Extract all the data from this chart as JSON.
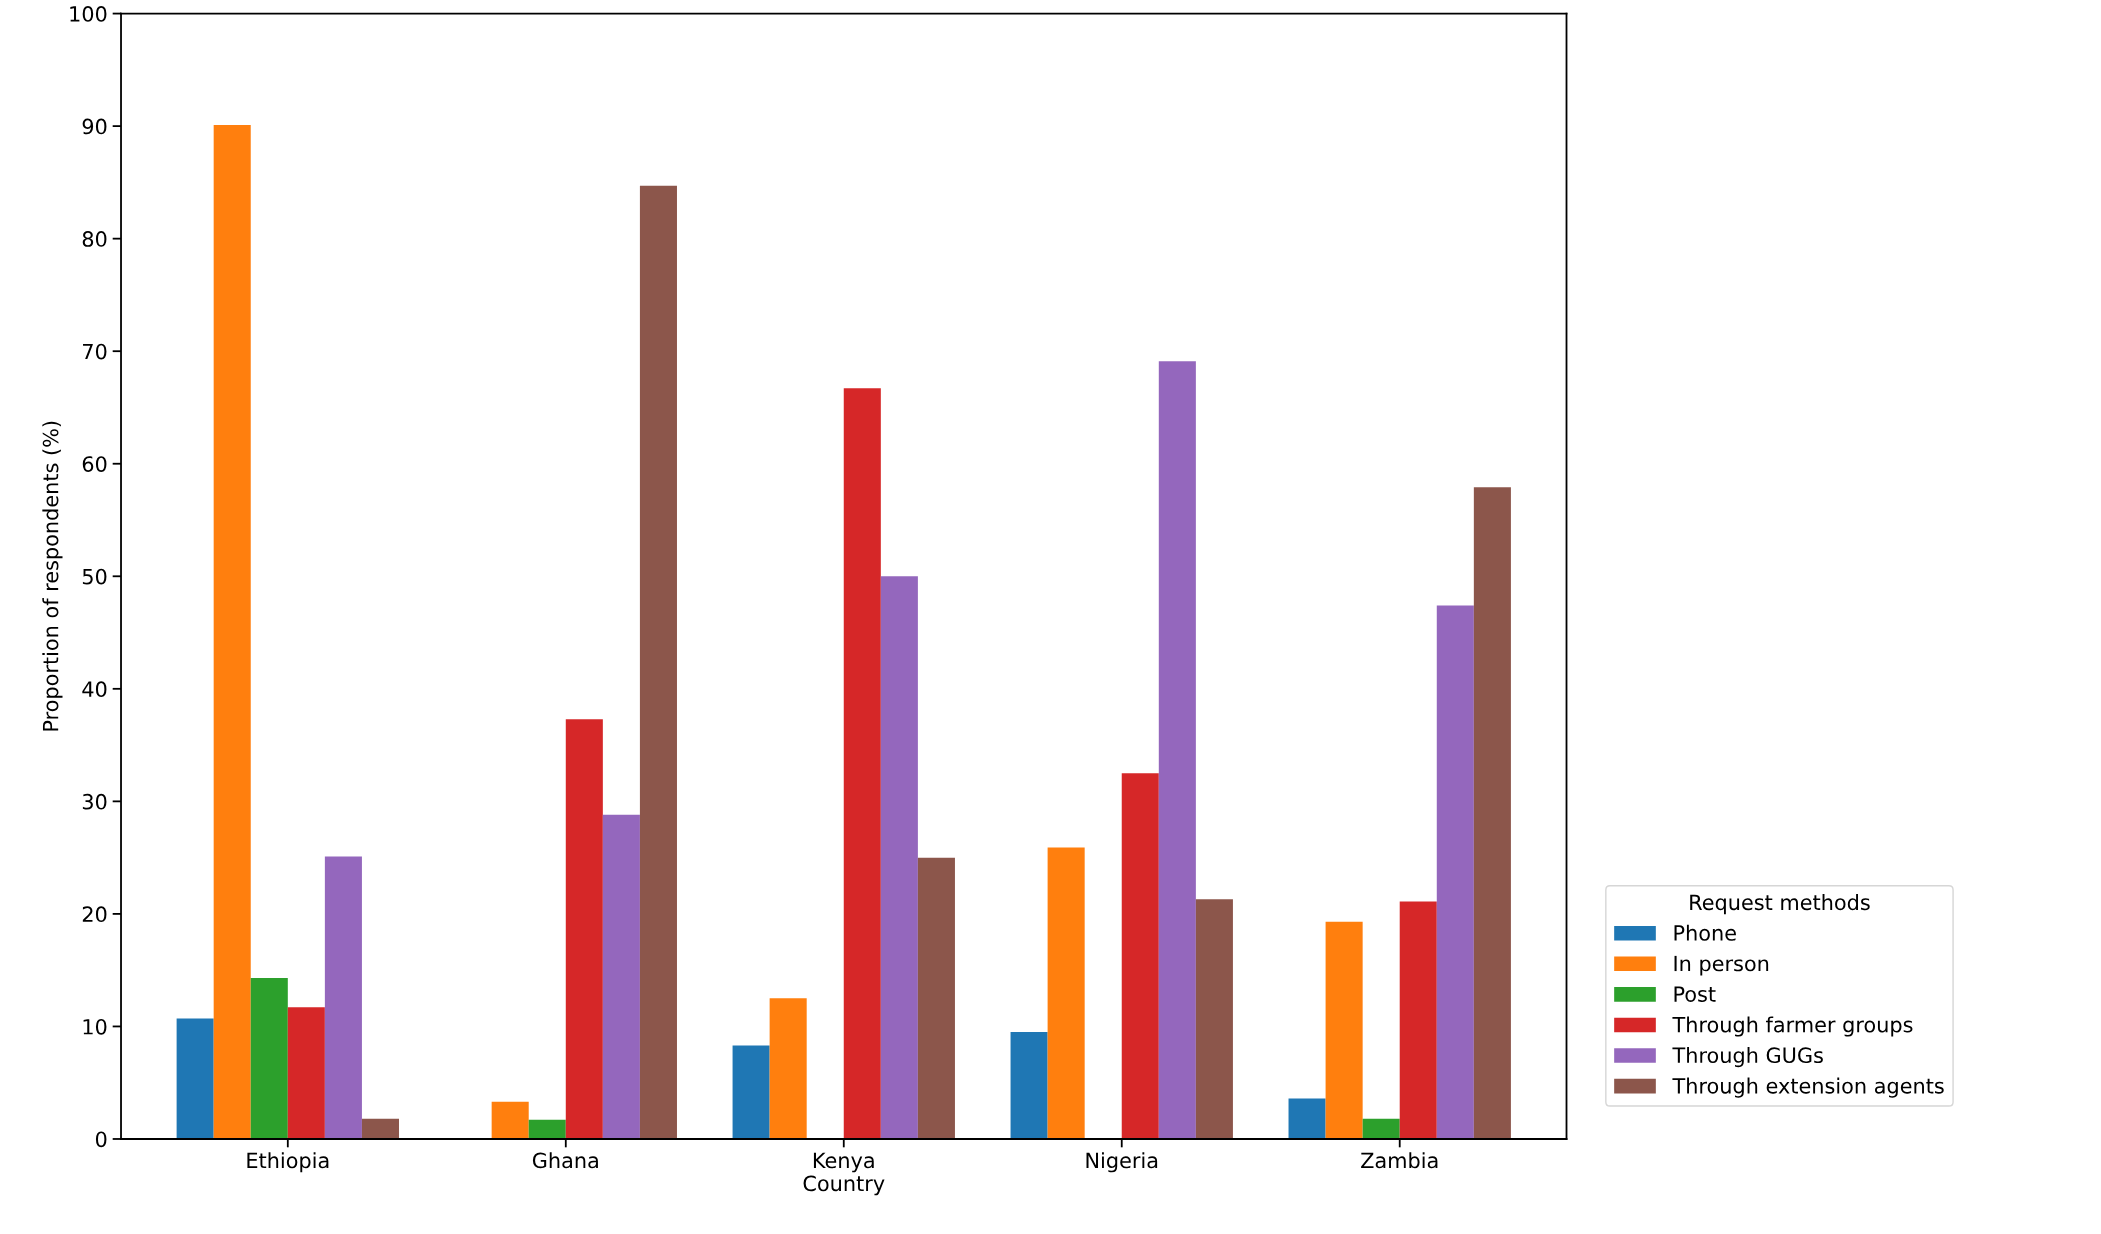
{
  "chart_data": {
    "type": "bar",
    "xlabel": "Country",
    "ylabel": "Proportion of respondents (%)",
    "legend_title": "Request methods",
    "legend": "right",
    "categories": [
      "Ethiopia",
      "Ghana",
      "Kenya",
      "Nigeria",
      "Zambia"
    ],
    "ylim": [
      0,
      100
    ],
    "yticks": [
      0,
      10,
      20,
      30,
      40,
      50,
      60,
      70,
      80,
      90,
      100
    ],
    "grid": false,
    "series": [
      {
        "name": "Phone",
        "color": "#1f77b4",
        "values": [
          10.7,
          0,
          8.3,
          9.5,
          3.6
        ]
      },
      {
        "name": "In person",
        "color": "#ff7f0e",
        "values": [
          90.1,
          3.3,
          12.5,
          25.9,
          19.3
        ]
      },
      {
        "name": "Post",
        "color": "#2ca02c",
        "values": [
          14.3,
          1.7,
          0,
          0,
          1.8
        ]
      },
      {
        "name": "Through farmer groups",
        "color": "#d62728",
        "values": [
          11.7,
          37.3,
          66.7,
          32.5,
          21.1
        ]
      },
      {
        "name": "Through GUGs",
        "color": "#9467bd",
        "values": [
          25.1,
          28.8,
          50.0,
          69.1,
          47.4
        ]
      },
      {
        "name": "Through extension agents",
        "color": "#8c564b",
        "values": [
          1.8,
          84.7,
          25.0,
          21.3,
          57.9
        ]
      }
    ]
  }
}
